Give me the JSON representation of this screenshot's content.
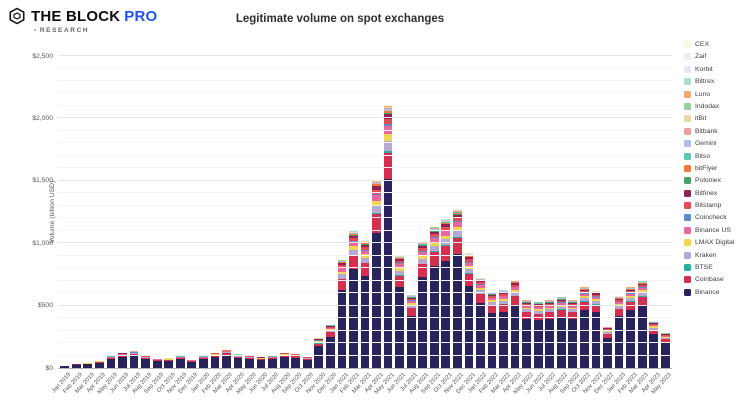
{
  "logo": {
    "brand": "THE BLOCK",
    "pro": "PRO",
    "sub": "RESEARCH",
    "accent_color": "#2151f5"
  },
  "title": "Legitimate volume on spot exchanges",
  "chart_data": {
    "type": "bar",
    "stacked": true,
    "title": "Legitimate volume on spot exchanges",
    "xlabel": "",
    "ylabel": "Volume (billion USD)",
    "ylim": [
      0,
      2500
    ],
    "grid": true,
    "minor_grid_step": 100,
    "major_grid_step": 500,
    "legend_position": "right",
    "y_ticks": [
      {
        "v": 0,
        "label": "$0"
      },
      {
        "v": 500,
        "label": "$500"
      },
      {
        "v": 1000,
        "label": "$1,000"
      },
      {
        "v": 1500,
        "label": "$1,500"
      },
      {
        "v": 2000,
        "label": "$2,000"
      },
      {
        "v": 2500,
        "label": "$2,500"
      }
    ],
    "categories": [
      "Jan 2019",
      "Feb 2019",
      "Mar 2019",
      "Apr 2019",
      "May 2019",
      "Jun 2019",
      "Jul 2019",
      "Aug 2019",
      "Sep 2019",
      "Oct 2019",
      "Nov 2019",
      "Dec 2019",
      "Jan 2020",
      "Feb 2020",
      "Mar 2020",
      "Apr 2020",
      "May 2020",
      "Jun 2020",
      "Jul 2020",
      "Aug 2020",
      "Sep 2020",
      "Oct 2020",
      "Nov 2020",
      "Dec 2020",
      "Jan 2021",
      "Feb 2021",
      "Mar 2021",
      "Apr 2021",
      "May 2021",
      "Jun 2021",
      "Jul 2021",
      "Aug 2021",
      "Sep 2021",
      "Oct 2021",
      "Nov 2021",
      "Dec 2021",
      "Jan 2022",
      "Feb 2022",
      "Mar 2022",
      "Apr 2022",
      "May 2022",
      "Jun 2022",
      "Jul 2022",
      "Aug 2022",
      "Sep 2022",
      "Oct 2022",
      "Nov 2022",
      "Dec 2022",
      "Jan 2023",
      "Feb 2023",
      "Mar 2023",
      "Apr 2023",
      "May 2023"
    ],
    "totals_billion_usd": [
      20,
      30,
      42,
      60,
      95,
      122,
      135,
      100,
      76,
      78,
      95,
      68,
      95,
      125,
      145,
      110,
      100,
      88,
      95,
      125,
      115,
      90,
      240,
      350,
      870,
      1100,
      1025,
      1510,
      2110,
      905,
      585,
      1015,
      1135,
      1195,
      1275,
      920,
      725,
      610,
      625,
      705,
      545,
      530,
      545,
      570,
      545,
      650,
      620,
      330,
      575,
      650,
      700,
      375,
      280
    ],
    "stack_order_note": "bottom to top",
    "exchanges": [
      {
        "name": "Binance",
        "color": "#29235c",
        "share": 0.72
      },
      {
        "name": "Coinbase",
        "color": "#d62e4e",
        "share": 0.1
      },
      {
        "name": "BTSE",
        "color": "#2fae9e",
        "share": 0.005
      },
      {
        "name": "Kraken",
        "color": "#b3a9d3",
        "share": 0.04
      },
      {
        "name": "LMAX Digital",
        "color": "#f0d553",
        "share": 0.025
      },
      {
        "name": "Binance US",
        "color": "#e9679e",
        "share": 0.03
      },
      {
        "name": "Coincheck",
        "color": "#5b8fc9",
        "share": 0.008
      },
      {
        "name": "Bitstamp",
        "color": "#e04b54",
        "share": 0.02
      },
      {
        "name": "Bitfinex",
        "color": "#8e2155",
        "share": 0.018
      },
      {
        "name": "Poloniex",
        "color": "#46a566",
        "share": 0.004
      },
      {
        "name": "bitFlyer",
        "color": "#ee7b30",
        "share": 0.007
      },
      {
        "name": "Bitso",
        "color": "#5fc4b2",
        "share": 0.003
      },
      {
        "name": "Gemini",
        "color": "#aebee6",
        "share": 0.005
      },
      {
        "name": "Bitbank",
        "color": "#eb9f9b",
        "share": 0.004
      },
      {
        "name": "itBit",
        "color": "#e9d9a4",
        "share": 0.004
      },
      {
        "name": "Indodax",
        "color": "#97cf9b",
        "share": 0.002
      },
      {
        "name": "Luno",
        "color": "#f2a873",
        "share": 0.002
      },
      {
        "name": "Bittrex",
        "color": "#aedbd3",
        "share": 0.002
      },
      {
        "name": "Korbit",
        "color": "#e2e9f6",
        "share": 0.0015
      },
      {
        "name": "Zaif",
        "color": "#f9e9e7",
        "share": 0.001
      },
      {
        "name": "CEX",
        "color": "#fbf7e3",
        "share": 0.0005
      }
    ]
  }
}
